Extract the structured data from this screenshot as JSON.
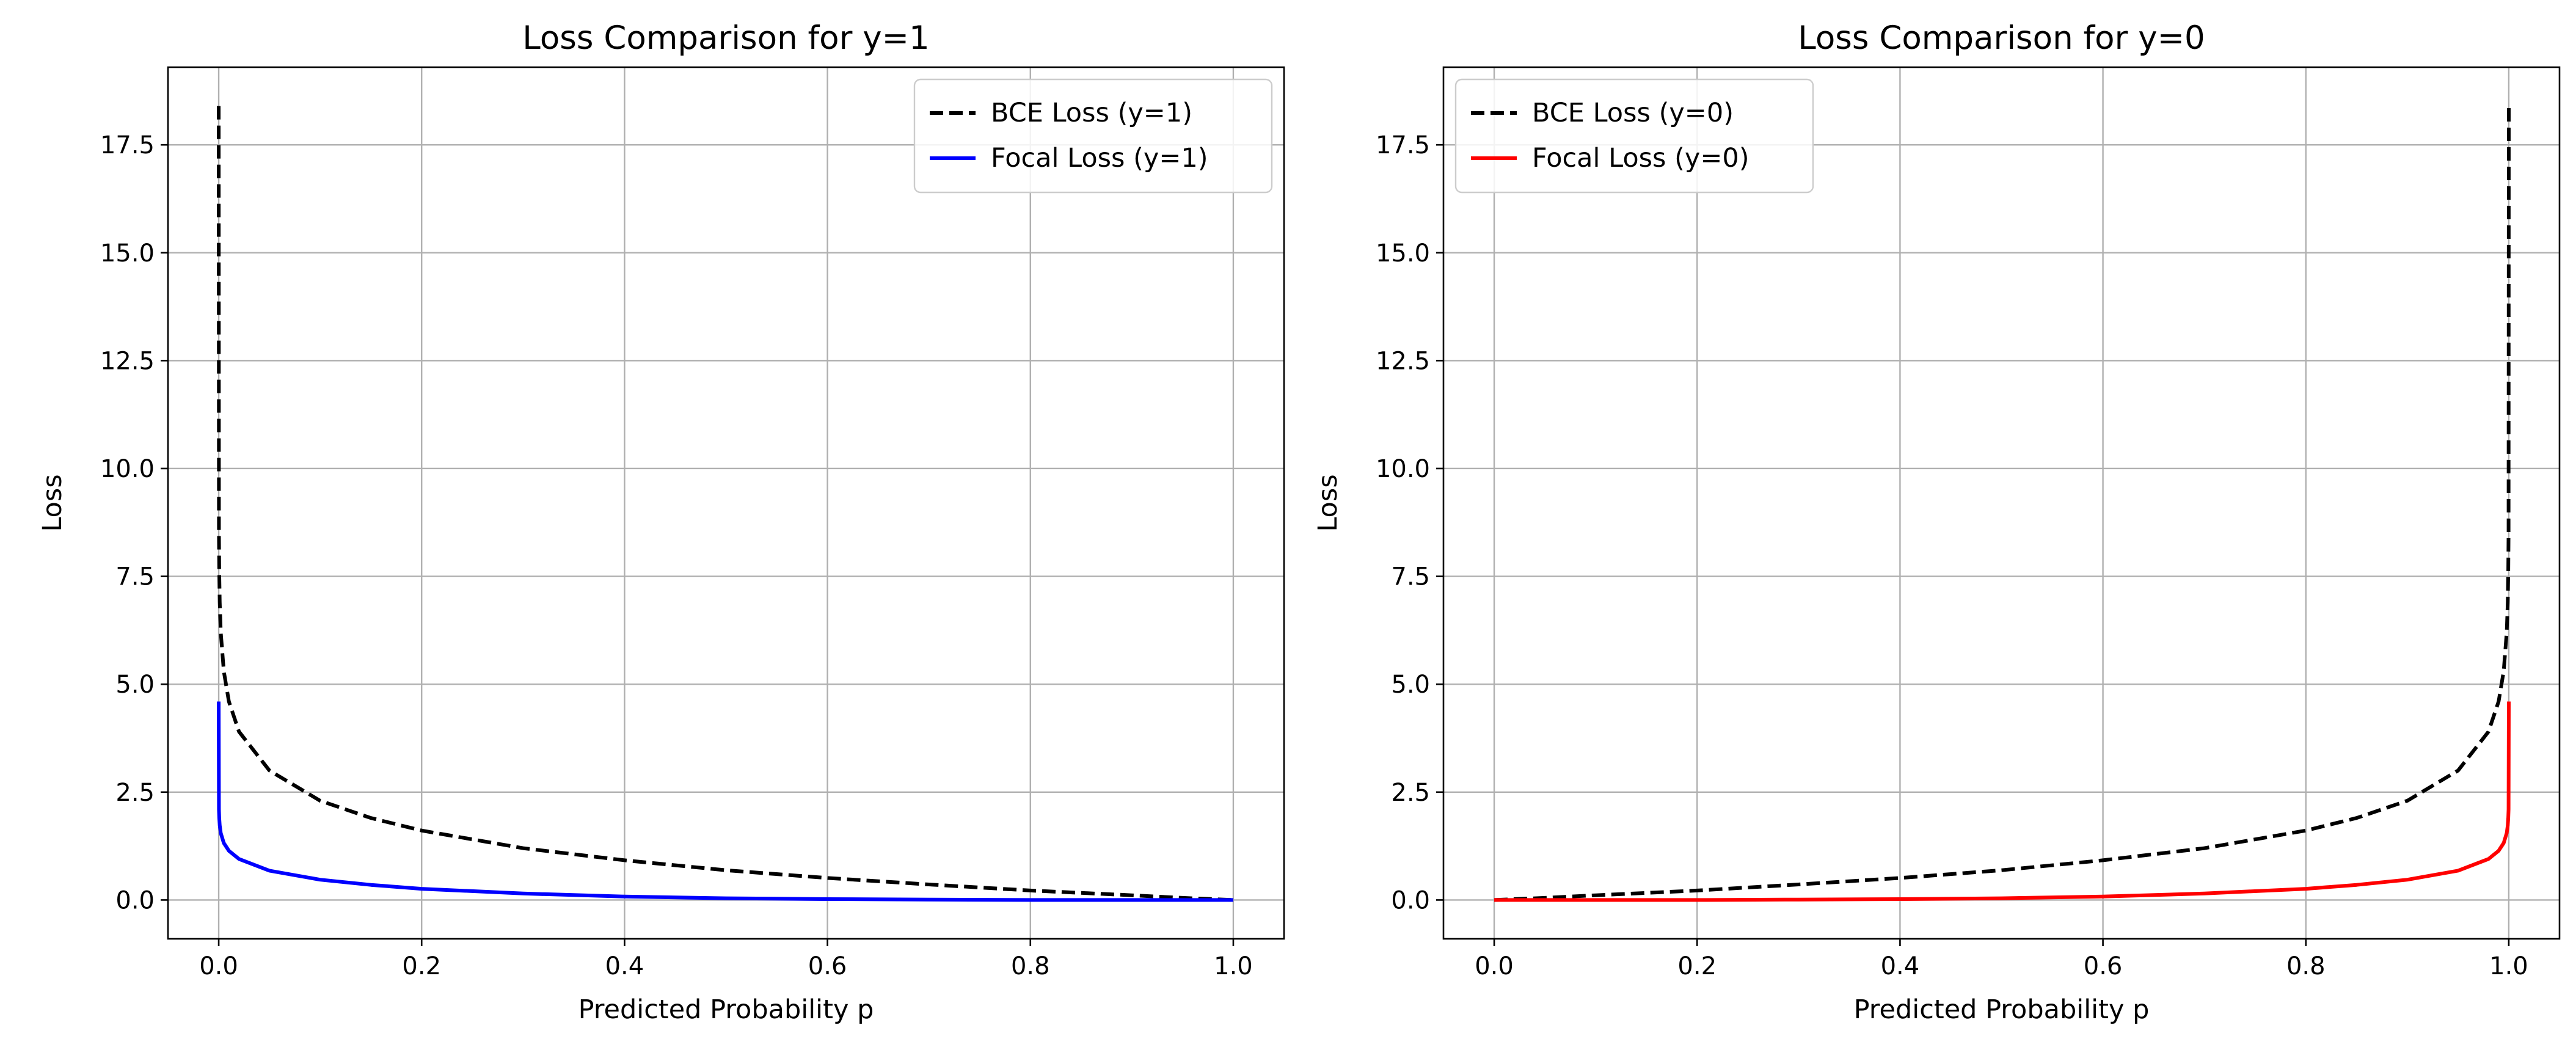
{
  "chart_data": [
    {
      "type": "line",
      "title": "Loss Comparison for y=1",
      "xlabel": "Predicted Probability p",
      "ylabel": "Loss",
      "xlim": [
        -0.05,
        1.05
      ],
      "ylim": [
        -0.9,
        19.3
      ],
      "xticks": [
        "0.0",
        "0.2",
        "0.4",
        "0.6",
        "0.8",
        "1.0"
      ],
      "yticks": [
        "0.0",
        "2.5",
        "5.0",
        "7.5",
        "10.0",
        "12.5",
        "15.0",
        "17.5"
      ],
      "grid": true,
      "legend_position": "top-right",
      "series": [
        {
          "name": "BCE Loss (y=1)",
          "color": "#000000",
          "style": "dashed",
          "x": [
            0.0,
            0.0002,
            0.0005,
            0.001,
            0.002,
            0.005,
            0.01,
            0.02,
            0.05,
            0.1,
            0.15,
            0.2,
            0.3,
            0.4,
            0.5,
            0.6,
            0.7,
            0.8,
            0.9,
            0.95,
            1.0
          ],
          "y": [
            18.4,
            8.5,
            7.6,
            6.9,
            6.2,
            5.3,
            4.6,
            3.9,
            3.0,
            2.3,
            1.9,
            1.61,
            1.2,
            0.92,
            0.69,
            0.51,
            0.36,
            0.22,
            0.11,
            0.05,
            0.0
          ]
        },
        {
          "name": "Focal Loss (y=1)",
          "color": "#0000ff",
          "style": "solid",
          "x": [
            0.0,
            0.0002,
            0.0005,
            0.001,
            0.002,
            0.005,
            0.01,
            0.02,
            0.05,
            0.1,
            0.15,
            0.2,
            0.3,
            0.4,
            0.5,
            0.6,
            0.7,
            0.8,
            0.9,
            0.95,
            1.0
          ],
          "y": [
            4.6,
            2.1,
            1.9,
            1.73,
            1.55,
            1.32,
            1.14,
            0.95,
            0.68,
            0.47,
            0.35,
            0.26,
            0.15,
            0.08,
            0.04,
            0.02,
            0.01,
            0.0,
            0.0,
            0.0,
            0.0
          ]
        }
      ]
    },
    {
      "type": "line",
      "title": "Loss Comparison for y=0",
      "xlabel": "Predicted Probability p",
      "ylabel": "Loss",
      "xlim": [
        -0.05,
        1.05
      ],
      "ylim": [
        -0.9,
        19.3
      ],
      "xticks": [
        "0.0",
        "0.2",
        "0.4",
        "0.6",
        "0.8",
        "1.0"
      ],
      "yticks": [
        "0.0",
        "2.5",
        "5.0",
        "7.5",
        "10.0",
        "12.5",
        "15.0",
        "17.5"
      ],
      "grid": true,
      "legend_position": "top-left",
      "series": [
        {
          "name": "BCE Loss (y=0)",
          "color": "#000000",
          "style": "dashed",
          "x": [
            0.0,
            0.05,
            0.1,
            0.2,
            0.3,
            0.4,
            0.5,
            0.6,
            0.7,
            0.8,
            0.85,
            0.9,
            0.95,
            0.98,
            0.99,
            0.995,
            0.998,
            0.999,
            0.9995,
            0.9998,
            1.0
          ],
          "y": [
            0.0,
            0.05,
            0.11,
            0.22,
            0.36,
            0.51,
            0.69,
            0.92,
            1.2,
            1.61,
            1.9,
            2.3,
            3.0,
            3.9,
            4.6,
            5.3,
            6.2,
            6.9,
            7.6,
            8.5,
            18.4
          ]
        },
        {
          "name": "Focal Loss (y=0)",
          "color": "#ff0000",
          "style": "solid",
          "x": [
            0.0,
            0.05,
            0.1,
            0.2,
            0.3,
            0.4,
            0.5,
            0.6,
            0.7,
            0.8,
            0.85,
            0.9,
            0.95,
            0.98,
            0.99,
            0.995,
            0.998,
            0.999,
            0.9995,
            0.9998,
            1.0
          ],
          "y": [
            0.0,
            0.0,
            0.0,
            0.0,
            0.01,
            0.02,
            0.04,
            0.08,
            0.15,
            0.26,
            0.35,
            0.47,
            0.68,
            0.95,
            1.14,
            1.32,
            1.55,
            1.73,
            1.9,
            2.1,
            4.6
          ]
        }
      ]
    }
  ]
}
